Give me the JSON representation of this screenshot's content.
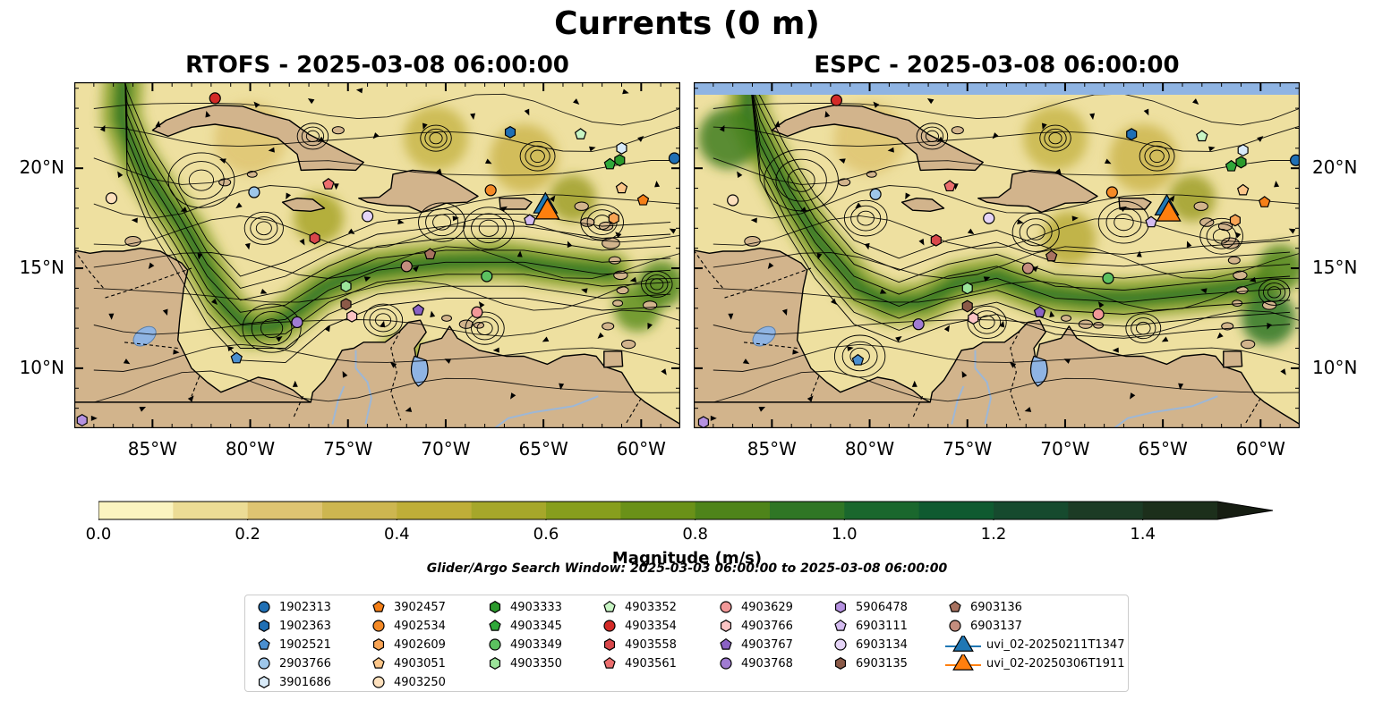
{
  "title": "Currents (0 m)",
  "panels": [
    {
      "id": "rtofs",
      "title": "RTOFS - 2025-03-08 06:00:00"
    },
    {
      "id": "espc",
      "title": "ESPC - 2025-03-08 06:00:00"
    }
  ],
  "map_extent": {
    "lon": [
      -89.0,
      -58.0
    ],
    "lat": [
      7.0,
      24.3
    ]
  },
  "lon_ticks": [
    "85°W",
    "80°W",
    "75°W",
    "70°W",
    "65°W",
    "60°W"
  ],
  "lat_ticks": [
    "20°N",
    "15°N",
    "10°N"
  ],
  "colorbar": {
    "label": "Magnitude (m/s)",
    "range": [
      0.0,
      1.5
    ],
    "extend": "max",
    "tick_labels": [
      "0.0",
      "0.2",
      "0.4",
      "0.6",
      "0.8",
      "1.0",
      "1.2",
      "1.4"
    ],
    "colors": [
      "#fbf4c0",
      "#ecdc95",
      "#dec472",
      "#cdb650",
      "#bfae38",
      "#a6a72a",
      "#879e1d",
      "#6a9118",
      "#4e841a",
      "#2f7625",
      "#1a672d",
      "#0f5a30",
      "#164a2e",
      "#1c3b25",
      "#1c2f1b",
      "#161d12"
    ]
  },
  "search_window": "Glider/Argo Search Window: 2025-03-03 06:00:00 to 2025-03-08 06:00:00",
  "colors": {
    "land": "#d2b48c",
    "water_blue": "#8fb4e3",
    "rivers": "#9db7d6"
  },
  "legend": {
    "columns": [
      [
        {
          "label": "1902313",
          "marker": "circle",
          "color": "#1f6fb4"
        },
        {
          "label": "1902363",
          "marker": "hexagon",
          "color": "#1f6fb4"
        },
        {
          "label": "1902521",
          "marker": "pentagon",
          "color": "#4a8fd0"
        },
        {
          "label": "2903766",
          "marker": "circle",
          "color": "#9ec7ea"
        },
        {
          "label": "3901686",
          "marker": "hexagon",
          "color": "#d8eaf8"
        }
      ],
      [
        {
          "label": "3902457",
          "marker": "pentagon",
          "color": "#f57f17"
        },
        {
          "label": "4902534",
          "marker": "circle",
          "color": "#f58a26"
        },
        {
          "label": "4902609",
          "marker": "hexagon",
          "color": "#f8a455"
        },
        {
          "label": "4903051",
          "marker": "pentagon",
          "color": "#fcc689"
        },
        {
          "label": "4903250",
          "marker": "circle",
          "color": "#fde0bd"
        }
      ],
      [
        {
          "label": "4903333",
          "marker": "hexagon",
          "color": "#2b9a2c"
        },
        {
          "label": "4903345",
          "marker": "pentagon",
          "color": "#2fa83a"
        },
        {
          "label": "4903349",
          "marker": "circle",
          "color": "#5cc160"
        },
        {
          "label": "4903350",
          "marker": "hexagon",
          "color": "#9be39a"
        }
      ],
      [
        {
          "label": "4903352",
          "marker": "pentagon",
          "color": "#c8f5c4"
        },
        {
          "label": "4903354",
          "marker": "circle",
          "color": "#d42a27"
        },
        {
          "label": "4903558",
          "marker": "hexagon",
          "color": "#d8474a"
        },
        {
          "label": "4903561",
          "marker": "pentagon",
          "color": "#ec6e6e"
        }
      ],
      [
        {
          "label": "4903629",
          "marker": "circle",
          "color": "#f29898"
        },
        {
          "label": "4903766",
          "marker": "hexagon",
          "color": "#fbc4c4"
        },
        {
          "label": "4903767",
          "marker": "pentagon",
          "color": "#8a62c4"
        },
        {
          "label": "4903768",
          "marker": "circle",
          "color": "#a07cd2"
        }
      ],
      [
        {
          "label": "5906478",
          "marker": "hexagon",
          "color": "#b591e0"
        },
        {
          "label": "6903111",
          "marker": "pentagon",
          "color": "#d4bcf0"
        },
        {
          "label": "6903134",
          "marker": "circle",
          "color": "#e5d4f7"
        },
        {
          "label": "6903135",
          "marker": "hexagon",
          "color": "#8b5a48"
        }
      ],
      [
        {
          "label": "6903136",
          "marker": "pentagon",
          "color": "#a87260"
        },
        {
          "label": "6903137",
          "marker": "circle",
          "color": "#c48d7e"
        },
        {
          "label": "uvi_02-20250211T1347",
          "marker": "triangle",
          "color": "#1f77b4"
        },
        {
          "label": "uvi_02-20250306T1911",
          "marker": "triangle",
          "color": "#ff7f0e"
        }
      ]
    ]
  },
  "markers": [
    {
      "label": "4903354",
      "lon": -81.8,
      "lat": 23.5
    },
    {
      "label": "1902363",
      "lon": -66.7,
      "lat": 21.8
    },
    {
      "label": "4903352",
      "lon": -63.1,
      "lat": 21.7
    },
    {
      "label": "3901686",
      "lon": -61.0,
      "lat": 21.0
    },
    {
      "label": "4903333",
      "lon": -61.1,
      "lat": 20.4
    },
    {
      "label": "4903345",
      "lon": -61.6,
      "lat": 20.2
    },
    {
      "label": "1902313",
      "lon": -58.3,
      "lat": 20.5
    },
    {
      "label": "4903250",
      "lon": -87.1,
      "lat": 18.5
    },
    {
      "label": "2903766",
      "lon": -79.8,
      "lat": 18.8
    },
    {
      "label": "4903561",
      "lon": -76.0,
      "lat": 19.2
    },
    {
      "label": "4902534",
      "lon": -67.7,
      "lat": 18.9
    },
    {
      "label": "4903051",
      "lon": -61.0,
      "lat": 19.0
    },
    {
      "label": "3902457",
      "lon": -59.9,
      "lat": 18.4
    },
    {
      "label": "4902609",
      "lon": -61.4,
      "lat": 17.5
    },
    {
      "label": "6903134",
      "lon": -74.0,
      "lat": 17.6
    },
    {
      "label": "6903111",
      "lon": -65.7,
      "lat": 17.4
    },
    {
      "label": "4903558",
      "lon": -76.7,
      "lat": 16.5
    },
    {
      "label": "6903136",
      "lon": -70.8,
      "lat": 15.7
    },
    {
      "label": "6903137",
      "lon": -72.0,
      "lat": 15.1
    },
    {
      "label": "4903349",
      "lon": -67.9,
      "lat": 14.6
    },
    {
      "label": "4903350",
      "lon": -75.1,
      "lat": 14.1
    },
    {
      "label": "6903135",
      "lon": -75.1,
      "lat": 13.2
    },
    {
      "label": "4903766",
      "lon": -74.8,
      "lat": 12.6
    },
    {
      "label": "4903768",
      "lon": -77.6,
      "lat": 12.3
    },
    {
      "label": "4903767",
      "lon": -71.4,
      "lat": 12.9
    },
    {
      "label": "4903629",
      "lon": -68.4,
      "lat": 12.8
    },
    {
      "label": "1902521",
      "lon": -80.7,
      "lat": 10.5
    },
    {
      "label": "5906478",
      "lon": -88.6,
      "lat": 7.4
    },
    {
      "label": "uvi_02-20250211T1347",
      "lon": -64.9,
      "lat": 18.1
    },
    {
      "label": "uvi_02-20250306T1911",
      "lon": -64.8,
      "lat": 17.8
    }
  ]
}
